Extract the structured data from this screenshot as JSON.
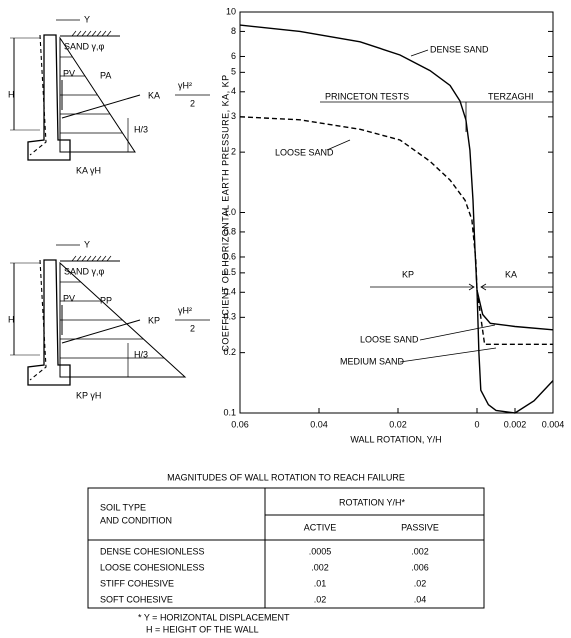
{
  "chart_data": [
    {
      "type": "line",
      "y_label": "COEFFICIENT OF HORIZONTAL EARTH PRESSURE, KA, KP",
      "x_label": "WALL ROTATION, Y/H",
      "log_y": true,
      "ylim": [
        0.1,
        10
      ],
      "yticks": [
        0.1,
        0.2,
        0.3,
        0.4,
        0.5,
        0.6,
        0.8,
        {
          "value": 1,
          "label": "1.0"
        },
        2,
        3,
        4,
        5,
        6,
        8,
        10
      ],
      "xlim": [
        0.06,
        0
      ],
      "xticks": [
        0.06,
        0.04,
        0.02,
        0
      ],
      "annotations": [
        "DENSE SAND",
        "LOOSE SAND",
        "PRINCETON TESTS",
        "TERZAGHI",
        "KP",
        "KA",
        "LOOSE SAND",
        "MEDIUM SAND"
      ],
      "series": [
        {
          "name": "DENSE SAND",
          "color": "#000000",
          "dash": false,
          "x": [
            0.06,
            0.0448,
            0.0296,
            0.0195,
            0.0119,
            0.0068,
            0.0043,
            0.0028,
            0.0018,
            0.001,
            0.0005,
            0
          ],
          "values": [
            8.6,
            8.0,
            7.1,
            6.1,
            5.1,
            4.3,
            3.6,
            2.9,
            2.05,
            1.15,
            0.65,
            0.41
          ]
        },
        {
          "name": "LOOSE SAND",
          "color": "#000000",
          "dash": true,
          "x": [
            0.06,
            0.0448,
            0.0296,
            0.0195,
            0.0119,
            0.0068,
            0.003,
            0.0013,
            0.0003,
            0
          ],
          "values": [
            3.0,
            2.9,
            2.6,
            2.3,
            1.8,
            1.45,
            1.15,
            0.92,
            0.58,
            0.41
          ]
        }
      ]
    },
    {
      "type": "line",
      "log_y": true,
      "ylim": [
        0.1,
        10
      ],
      "xlim": [
        0,
        0.004
      ],
      "xticks": [
        0.002,
        0.004
      ],
      "series": [
        {
          "name": "DENSE SAND",
          "color": "#000000",
          "dash": false,
          "x": [
            0,
            0.0001,
            0.0002,
            0.0006,
            0.001,
            0.002,
            0.003,
            0.004
          ],
          "values": [
            0.41,
            0.2,
            0.13,
            0.11,
            0.103,
            0.1,
            0.115,
            0.145
          ]
        },
        {
          "name": "LOOSE SAND",
          "color": "#000000",
          "dash": false,
          "x": [
            0,
            0.0003,
            0.0007,
            0.002,
            0.004
          ],
          "values": [
            0.41,
            0.31,
            0.28,
            0.27,
            0.26
          ]
        },
        {
          "name": "MEDIUM SAND",
          "color": "#000000",
          "dash": true,
          "x": [
            0,
            0.0002,
            0.0004,
            0.004
          ],
          "values": [
            0.41,
            0.3,
            0.22,
            0.22
          ]
        }
      ]
    }
  ],
  "diagrams": [
    {
      "y": "Y",
      "soil": "SAND γ,φ",
      "height": "H",
      "pv": "PV",
      "force": "PA",
      "coef": "KA",
      "weight": "γH²",
      "two": "2",
      "third": "H/3",
      "base": "KA γH"
    },
    {
      "y": "Y",
      "soil": "SAND γ,φ",
      "height": "H",
      "pv": "PV",
      "force": "PP",
      "coef": "KP",
      "weight": "γH²",
      "two": "2",
      "third": "H/3",
      "base": "KP γH"
    }
  ],
  "table": {
    "title": "MAGNITUDES OF WALL ROTATION TO REACH FAILURE",
    "header": {
      "soil1": "SOIL TYPE",
      "soil2": "AND CONDITION",
      "rotation": "ROTATION Y/H*",
      "active": "ACTIVE",
      "passive": "PASSIVE"
    },
    "rows": [
      [
        "DENSE COHESIONLESS",
        ".0005",
        ".002"
      ],
      [
        "LOOSE COHESIONLESS",
        ".002",
        ".006"
      ],
      [
        "STIFF COHESIVE",
        ".01",
        ".02"
      ],
      [
        "SOFT COHESIVE",
        ".02",
        ".04"
      ]
    ],
    "notes": [
      "* Y = HORIZONTAL DISPLACEMENT",
      "H = HEIGHT OF THE WALL"
    ]
  }
}
